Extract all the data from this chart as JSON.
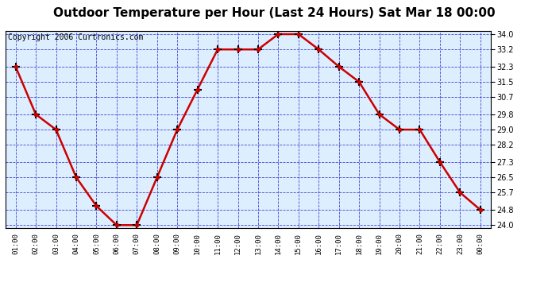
{
  "title": "Outdoor Temperature per Hour (Last 24 Hours) Sat Mar 18 00:00",
  "copyright": "Copyright 2006 Curtronics.com",
  "hours": [
    "01:00",
    "02:00",
    "03:00",
    "04:00",
    "05:00",
    "06:00",
    "07:00",
    "08:00",
    "09:00",
    "10:00",
    "11:00",
    "12:00",
    "13:00",
    "14:00",
    "15:00",
    "16:00",
    "17:00",
    "18:00",
    "19:00",
    "20:00",
    "21:00",
    "22:00",
    "23:00",
    "00:00"
  ],
  "temps": [
    32.3,
    29.8,
    29.0,
    26.5,
    25.0,
    24.0,
    24.0,
    26.5,
    29.0,
    31.1,
    33.2,
    33.2,
    33.2,
    34.0,
    34.0,
    33.2,
    32.3,
    31.5,
    29.8,
    29.0,
    29.0,
    27.3,
    25.7,
    24.8
  ],
  "ylim_min": 24.0,
  "ylim_max": 34.0,
  "yticks": [
    24.0,
    24.8,
    25.7,
    26.5,
    27.3,
    28.2,
    29.0,
    29.8,
    30.7,
    31.5,
    32.3,
    33.2,
    34.0
  ],
  "line_color": "#cc0000",
  "plot_bg": "#ddeeff",
  "outer_bg": "#ffffff",
  "grid_color": "#3333cc",
  "title_fontsize": 11,
  "copyright_fontsize": 7
}
